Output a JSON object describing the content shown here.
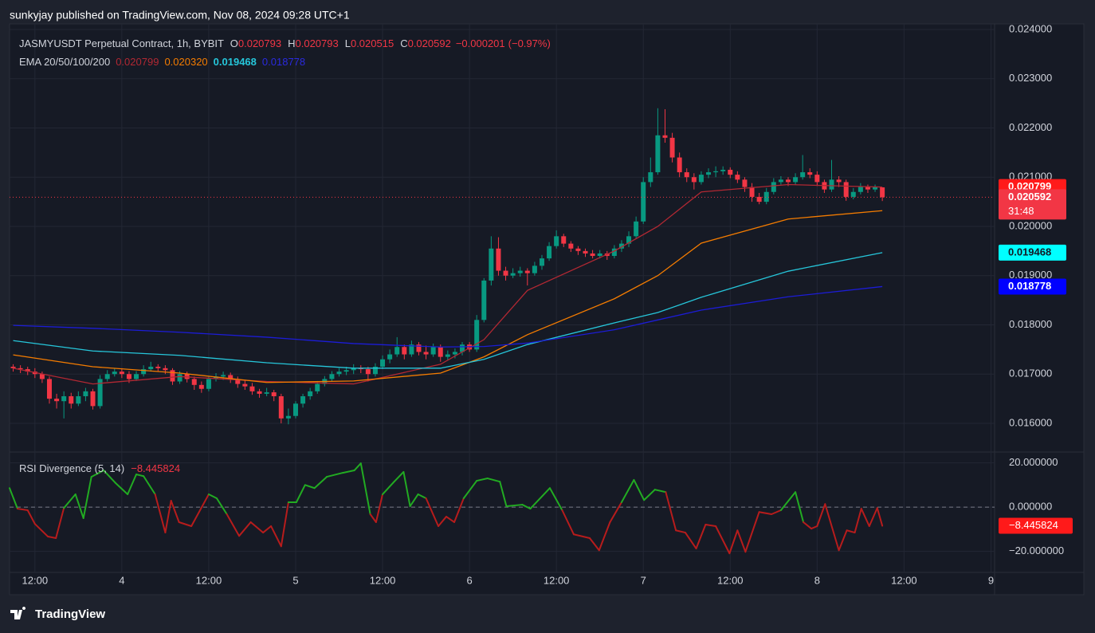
{
  "header": {
    "text": "sunkyjay published on TradingView.com, Nov 08, 2024 09:28 UTC+1"
  },
  "brand": "TradingView",
  "chart_data": {
    "type": "candlestick",
    "title": "JASMYUSDT Perpetual Contract, 1h, BYBIT",
    "ohlc_keys": [
      "O",
      "H",
      "L",
      "C"
    ],
    "change": {
      "value": -0.000201,
      "label": "−0.000201"
    },
    "change_pct": {
      "value": -0.97,
      "label": "(−0.97%)"
    },
    "countdown": "31:48",
    "xlim": [
      8.5,
      144.5
    ],
    "xticks": [
      {
        "value": 12,
        "label": "12:00"
      },
      {
        "value": 24,
        "label": "4"
      },
      {
        "value": 36,
        "label": "12:00"
      },
      {
        "value": 48,
        "label": "5"
      },
      {
        "value": 60,
        "label": "12:00"
      },
      {
        "value": 72,
        "label": "6"
      },
      {
        "value": 84,
        "label": "12:00"
      },
      {
        "value": 96,
        "label": "7"
      },
      {
        "value": 108,
        "label": "12:00"
      },
      {
        "value": 120,
        "label": "8"
      },
      {
        "value": 132,
        "label": "12:00"
      },
      {
        "value": 144,
        "label": "9"
      }
    ],
    "ylim": [
      0.015433,
      0.024113
    ],
    "yticks": [
      {
        "value": 0.016,
        "label": "0.016000"
      },
      {
        "value": 0.017,
        "label": "0.017000"
      },
      {
        "value": 0.018,
        "label": "0.018000"
      },
      {
        "value": 0.019,
        "label": "0.019000"
      },
      {
        "value": 0.02,
        "label": "0.020000"
      },
      {
        "value": 0.021,
        "label": "0.021000"
      },
      {
        "value": 0.022,
        "label": "0.022000"
      },
      {
        "value": 0.023,
        "label": "0.023000"
      },
      {
        "value": 0.024,
        "label": "0.024000"
      }
    ],
    "grid": true,
    "candles": {
      "up_color": "#089981",
      "down_color": "#f23645",
      "x": [
        9,
        10,
        11,
        12,
        13,
        14,
        15,
        16,
        17,
        18,
        19,
        20,
        21,
        22,
        23,
        24,
        25,
        26,
        27,
        28,
        29,
        30,
        31,
        32,
        33,
        34,
        35,
        36,
        37,
        38,
        39,
        40,
        41,
        42,
        43,
        44,
        45,
        46,
        47,
        48,
        49,
        50,
        51,
        52,
        53,
        54,
        55,
        56,
        57,
        58,
        59,
        60,
        61,
        62,
        63,
        64,
        65,
        66,
        67,
        68,
        69,
        70,
        71,
        72,
        73,
        74,
        75,
        76,
        77,
        78,
        79,
        80,
        81,
        82,
        83,
        84,
        85,
        86,
        87,
        88,
        89,
        90,
        91,
        92,
        93,
        94,
        95,
        96,
        97,
        98,
        99,
        100,
        101,
        102,
        103,
        104,
        105,
        106,
        107,
        108,
        109,
        110,
        111,
        112,
        113,
        114,
        115,
        116,
        117,
        118,
        119,
        120,
        121,
        122,
        123,
        124,
        125,
        126,
        127,
        128,
        129
      ],
      "open": [
        0.01715,
        0.01712,
        0.0171,
        0.01705,
        0.017,
        0.0169,
        0.0165,
        0.01645,
        0.01655,
        0.0164,
        0.01655,
        0.01665,
        0.01635,
        0.0169,
        0.017,
        0.01705,
        0.017,
        0.0169,
        0.017,
        0.0171,
        0.01715,
        0.01712,
        0.01708,
        0.01685,
        0.017,
        0.0169,
        0.01678,
        0.0167,
        0.0169,
        0.01695,
        0.01698,
        0.0169,
        0.0168,
        0.01675,
        0.01665,
        0.0166,
        0.01663,
        0.01655,
        0.0161,
        0.01615,
        0.0164,
        0.01655,
        0.01665,
        0.0168,
        0.0169,
        0.017,
        0.01705,
        0.01708,
        0.01712,
        0.0171,
        0.017,
        0.01715,
        0.0173,
        0.0174,
        0.01755,
        0.0174,
        0.0176,
        0.01745,
        0.0174,
        0.01755,
        0.01735,
        0.0174,
        0.01745,
        0.0176,
        0.0175,
        0.0181,
        0.0189,
        0.01955,
        0.0191,
        0.019,
        0.01905,
        0.0191,
        0.01905,
        0.0192,
        0.01935,
        0.0196,
        0.0198,
        0.01965,
        0.01955,
        0.0195,
        0.01945,
        0.0194,
        0.01945,
        0.0194,
        0.01955,
        0.01965,
        0.0198,
        0.0201,
        0.0209,
        0.0211,
        0.02185,
        0.0218,
        0.0214,
        0.0211,
        0.021,
        0.0209,
        0.02105,
        0.0211,
        0.02112,
        0.02115,
        0.02105,
        0.02095,
        0.0208,
        0.0206,
        0.0205,
        0.0207,
        0.0209,
        0.02095,
        0.0209,
        0.021,
        0.0211,
        0.02105,
        0.0209,
        0.02075,
        0.02095,
        0.0209,
        0.0206,
        0.0207,
        0.0208,
        0.02075,
        0.020793
      ],
      "high": [
        0.0172,
        0.01718,
        0.01715,
        0.01712,
        0.01705,
        0.01695,
        0.0166,
        0.01665,
        0.01662,
        0.01665,
        0.01672,
        0.0167,
        0.01698,
        0.01708,
        0.01712,
        0.01712,
        0.01706,
        0.01706,
        0.01718,
        0.01725,
        0.0172,
        0.01718,
        0.01712,
        0.01706,
        0.01705,
        0.01695,
        0.01685,
        0.01696,
        0.01702,
        0.01705,
        0.01703,
        0.01695,
        0.01688,
        0.01682,
        0.0167,
        0.01672,
        0.01668,
        0.0166,
        0.0163,
        0.01645,
        0.0166,
        0.01672,
        0.01686,
        0.01696,
        0.01706,
        0.01712,
        0.01715,
        0.0172,
        0.01718,
        0.01715,
        0.01722,
        0.01738,
        0.0175,
        0.01775,
        0.0176,
        0.01768,
        0.01765,
        0.01758,
        0.01762,
        0.0176,
        0.01748,
        0.01752,
        0.01765,
        0.01765,
        0.0182,
        0.01895,
        0.0198,
        0.01978,
        0.01918,
        0.01915,
        0.01918,
        0.01915,
        0.01928,
        0.01942,
        0.01968,
        0.01992,
        0.01985,
        0.0197,
        0.0196,
        0.01955,
        0.01952,
        0.01952,
        0.0195,
        0.01962,
        0.01972,
        0.0199,
        0.0202,
        0.021,
        0.0214,
        0.0224,
        0.02238,
        0.0219,
        0.0215,
        0.02118,
        0.02108,
        0.02112,
        0.02118,
        0.02122,
        0.02122,
        0.0212,
        0.02112,
        0.021,
        0.02088,
        0.02068,
        0.02078,
        0.02098,
        0.02102,
        0.021,
        0.02108,
        0.02145,
        0.02118,
        0.02112,
        0.02095,
        0.02135,
        0.02102,
        0.02095,
        0.02078,
        0.02088,
        0.02085,
        0.02085,
        0.020793
      ],
      "low": [
        0.01705,
        0.01702,
        0.01698,
        0.01692,
        0.01682,
        0.0164,
        0.0163,
        0.0161,
        0.0163,
        0.01635,
        0.01645,
        0.01628,
        0.0163,
        0.01685,
        0.01695,
        0.01692,
        0.01682,
        0.01686,
        0.01695,
        0.01705,
        0.01705,
        0.017,
        0.01678,
        0.0168,
        0.01683,
        0.01668,
        0.01662,
        0.01665,
        0.01685,
        0.01688,
        0.01682,
        0.01672,
        0.01668,
        0.01658,
        0.01652,
        0.01655,
        0.01645,
        0.016,
        0.01598,
        0.0161,
        0.01632,
        0.01648,
        0.0166,
        0.01675,
        0.01685,
        0.01695,
        0.01698,
        0.017,
        0.01702,
        0.01685,
        0.01695,
        0.0171,
        0.01722,
        0.01735,
        0.0173,
        0.01735,
        0.01738,
        0.0173,
        0.01735,
        0.01725,
        0.01728,
        0.01732,
        0.01738,
        0.01745,
        0.01745,
        0.01805,
        0.0188,
        0.019,
        0.0189,
        0.01895,
        0.01898,
        0.0188,
        0.019,
        0.01912,
        0.0193,
        0.01955,
        0.01958,
        0.01948,
        0.01942,
        0.01938,
        0.01935,
        0.01935,
        0.01932,
        0.01935,
        0.01948,
        0.01958,
        0.01975,
        0.02005,
        0.0208,
        0.02105,
        0.0217,
        0.0213,
        0.021,
        0.0209,
        0.02075,
        0.02085,
        0.02098,
        0.021,
        0.02105,
        0.02098,
        0.02088,
        0.0207,
        0.0205,
        0.02045,
        0.02045,
        0.02065,
        0.02085,
        0.02082,
        0.02085,
        0.02095,
        0.02098,
        0.02082,
        0.02068,
        0.0207,
        0.0208,
        0.02052,
        0.02055,
        0.02065,
        0.02068,
        0.0207,
        0.020515
      ],
      "close": [
        0.01712,
        0.0171,
        0.01705,
        0.017,
        0.0169,
        0.0165,
        0.01645,
        0.01655,
        0.0164,
        0.01655,
        0.01665,
        0.01635,
        0.0169,
        0.017,
        0.01705,
        0.017,
        0.0169,
        0.017,
        0.0171,
        0.01715,
        0.01712,
        0.01708,
        0.01685,
        0.017,
        0.0169,
        0.01678,
        0.0167,
        0.0169,
        0.01695,
        0.01698,
        0.0169,
        0.0168,
        0.01675,
        0.01665,
        0.0166,
        0.01663,
        0.01655,
        0.0161,
        0.01615,
        0.0164,
        0.01655,
        0.01665,
        0.0168,
        0.0169,
        0.017,
        0.01705,
        0.01708,
        0.01712,
        0.0171,
        0.017,
        0.01715,
        0.0173,
        0.0174,
        0.01755,
        0.0174,
        0.0176,
        0.01745,
        0.0174,
        0.01755,
        0.01735,
        0.0174,
        0.01745,
        0.0176,
        0.0175,
        0.0181,
        0.0189,
        0.01955,
        0.0191,
        0.019,
        0.01905,
        0.0191,
        0.01905,
        0.0192,
        0.01935,
        0.0196,
        0.0198,
        0.01965,
        0.01955,
        0.0195,
        0.01945,
        0.0194,
        0.01945,
        0.0194,
        0.01955,
        0.01965,
        0.0198,
        0.0201,
        0.0209,
        0.0211,
        0.02185,
        0.0218,
        0.0214,
        0.0211,
        0.021,
        0.0209,
        0.02105,
        0.0211,
        0.02112,
        0.02115,
        0.02105,
        0.02095,
        0.0208,
        0.0206,
        0.0205,
        0.0207,
        0.0209,
        0.02095,
        0.0209,
        0.021,
        0.0211,
        0.02105,
        0.0209,
        0.02075,
        0.02095,
        0.0209,
        0.0206,
        0.0207,
        0.0208,
        0.02075,
        0.020793,
        0.020592
      ]
    },
    "ema_title": "EMA 20/50/100/200",
    "ema_x": [
      9,
      20,
      32,
      44,
      56,
      68,
      74,
      80,
      92,
      98,
      104,
      116,
      129
    ],
    "emas": [
      {
        "color": "#b22833",
        "tag_color": "#ff1a1a",
        "tag_text_color": "#ffffff",
        "label": "0.020799",
        "values": [
          0.01712,
          0.0168,
          0.01695,
          0.01685,
          0.0168,
          0.0172,
          0.0177,
          0.0187,
          0.0195,
          0.02,
          0.0207,
          0.02085,
          0.020799
        ]
      },
      {
        "color": "#f57c00",
        "tag_color": "#f57c00",
        "tag_text_color": "#ffffff",
        "label": "0.020320",
        "values": [
          0.01739,
          0.01715,
          0.01702,
          0.01683,
          0.01686,
          0.01702,
          0.01735,
          0.0178,
          0.01853,
          0.019,
          0.01966,
          0.02015,
          0.02032
        ]
      },
      {
        "color": "#26c6da",
        "tag_color": "#00ffff",
        "tag_text_color": "#131722",
        "label": "0.019468",
        "values": [
          0.01768,
          0.01747,
          0.01738,
          0.01723,
          0.01712,
          0.01712,
          0.0173,
          0.0176,
          0.01804,
          0.01825,
          0.01856,
          0.01909,
          0.019468
        ]
      },
      {
        "color": "#1c1cd6",
        "tag_color": "#0000ff",
        "tag_text_color": "#ffffff",
        "label": "0.018778",
        "values": [
          0.01799,
          0.01793,
          0.01785,
          0.01775,
          0.01762,
          0.01755,
          0.01756,
          0.01763,
          0.0179,
          0.0181,
          0.0183,
          0.01857,
          0.018778
        ]
      }
    ],
    "rsi": {
      "title": "RSI Divergence (5, 14)",
      "up_color": "#22ab22",
      "down_color": "#b71c1c",
      "ylim": [
        -29.5,
        24.9
      ],
      "yticks": [
        {
          "value": 20,
          "label": "20.000000"
        },
        {
          "value": 0,
          "label": "0.000000"
        },
        {
          "value": -20,
          "label": "−20.000000"
        }
      ],
      "value_label": "−8.445824",
      "x": [
        8.5,
        9.6,
        11,
        12,
        13.8,
        14.9,
        16,
        17.6,
        18.7,
        19.8,
        21.5,
        23.1,
        24.8,
        26,
        27,
        28.6,
        30,
        30.8,
        31.9,
        33.6,
        36,
        37.1,
        38.5,
        40.2,
        41.8,
        43.5,
        44.6,
        46,
        47,
        48.1,
        49.3,
        50.6,
        52.3,
        54.5,
        56.1,
        57,
        58.3,
        59.1,
        60,
        61.6,
        62.9,
        63.8,
        64.9,
        66,
        67.7,
        68.8,
        69.9,
        71.2,
        73,
        74.5,
        76.2,
        77.1,
        79.3,
        80.4,
        83.1,
        84.8,
        86.4,
        88.6,
        89.9,
        91.4,
        93,
        94.7,
        96.1,
        97.6,
        99.1,
        100.5,
        101.8,
        103.3,
        104.6,
        106,
        107.9,
        109,
        110.1,
        112,
        113.7,
        115,
        117,
        118.1,
        119.2,
        120,
        121.1,
        123,
        124.1,
        125.2,
        126.1,
        127.2,
        128.3,
        129
      ],
      "values": [
        8.6,
        -0.7,
        -1.4,
        -7.6,
        -13.3,
        -14,
        -0.4,
        5.8,
        -5,
        13.7,
        16.6,
        11,
        5.8,
        14.8,
        14,
        5.8,
        -11.5,
        2.9,
        -6.8,
        -8.6,
        5.8,
        4,
        -3.2,
        -13,
        -6.8,
        -11.5,
        -8.6,
        -17.7,
        2.2,
        2.2,
        10,
        8.6,
        13.7,
        15.5,
        16.6,
        19.8,
        -3.2,
        -6.8,
        5.8,
        11.5,
        15.9,
        0.4,
        5.8,
        4,
        -8.6,
        -4.3,
        -6.8,
        4,
        11.9,
        13,
        11.5,
        0.4,
        1.1,
        -0.7,
        8.6,
        -1.4,
        -12.3,
        -14,
        -19.5,
        -6.8,
        2.2,
        12.3,
        3.2,
        7.9,
        6.8,
        -10.5,
        -11.5,
        -18.7,
        -7.9,
        -8.6,
        -20.9,
        -10.5,
        -20.2,
        -2.2,
        -3.2,
        -1.4,
        6.8,
        -6.8,
        -9.7,
        -8.6,
        1.4,
        -19.5,
        -10.5,
        -11.5,
        -0.7,
        -8.6,
        -0.4,
        -8.445824
      ]
    }
  }
}
